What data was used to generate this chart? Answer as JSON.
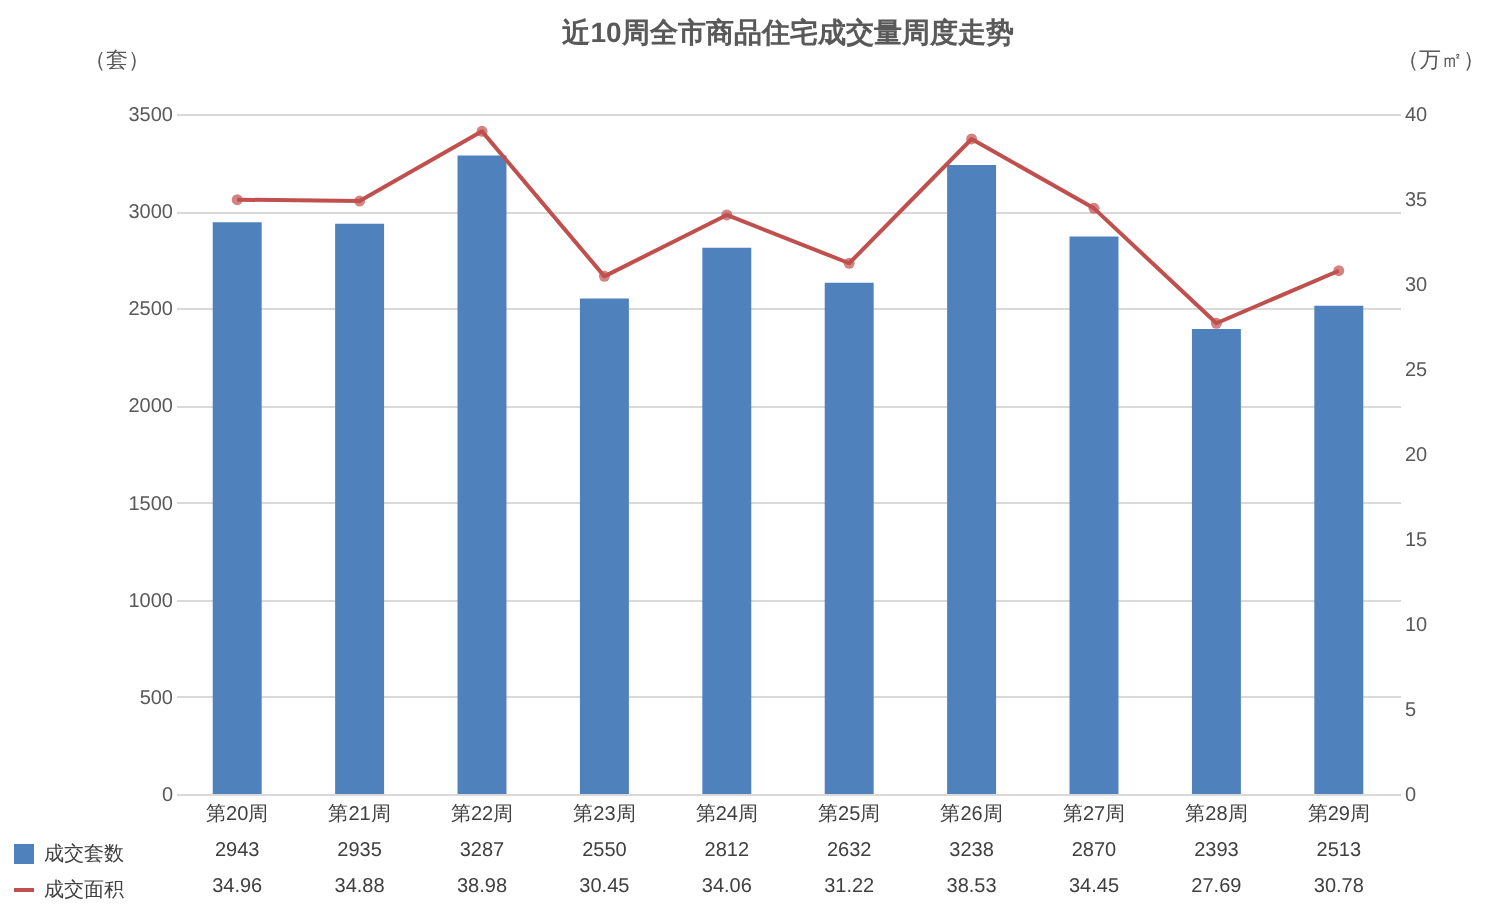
{
  "chart_data": {
    "type": "bar",
    "title": "近10周全市商品住宅成交量周度走势",
    "ylabel": "（套）",
    "y2label": "（万㎡）",
    "categories": [
      "第20周",
      "第21周",
      "第22周",
      "第23周",
      "第24周",
      "第25周",
      "第26周",
      "第27周",
      "第28周",
      "第29周"
    ],
    "series": [
      {
        "name": "成交套数",
        "color": "#4f81bd",
        "values": [
          2943,
          2935,
          3287,
          2550,
          2812,
          2632,
          3238,
          2870,
          2393,
          2513
        ]
      },
      {
        "name": "成交面积",
        "type": "line",
        "axis": "y2",
        "color": "#c0504d",
        "values": [
          34.96,
          34.88,
          38.98,
          30.45,
          34.06,
          31.22,
          38.53,
          34.45,
          27.69,
          30.78
        ]
      }
    ],
    "ylim": [
      0,
      3500
    ],
    "yticks": [
      0,
      500,
      1000,
      1500,
      2000,
      2500,
      3000,
      3500
    ],
    "y2lim": [
      0,
      40
    ],
    "y2ticks": [
      0,
      5,
      10,
      15,
      20,
      25,
      30,
      35,
      40
    ],
    "grid": "y",
    "marker": "circle",
    "data_labels": true,
    "legend": "bottom left"
  }
}
